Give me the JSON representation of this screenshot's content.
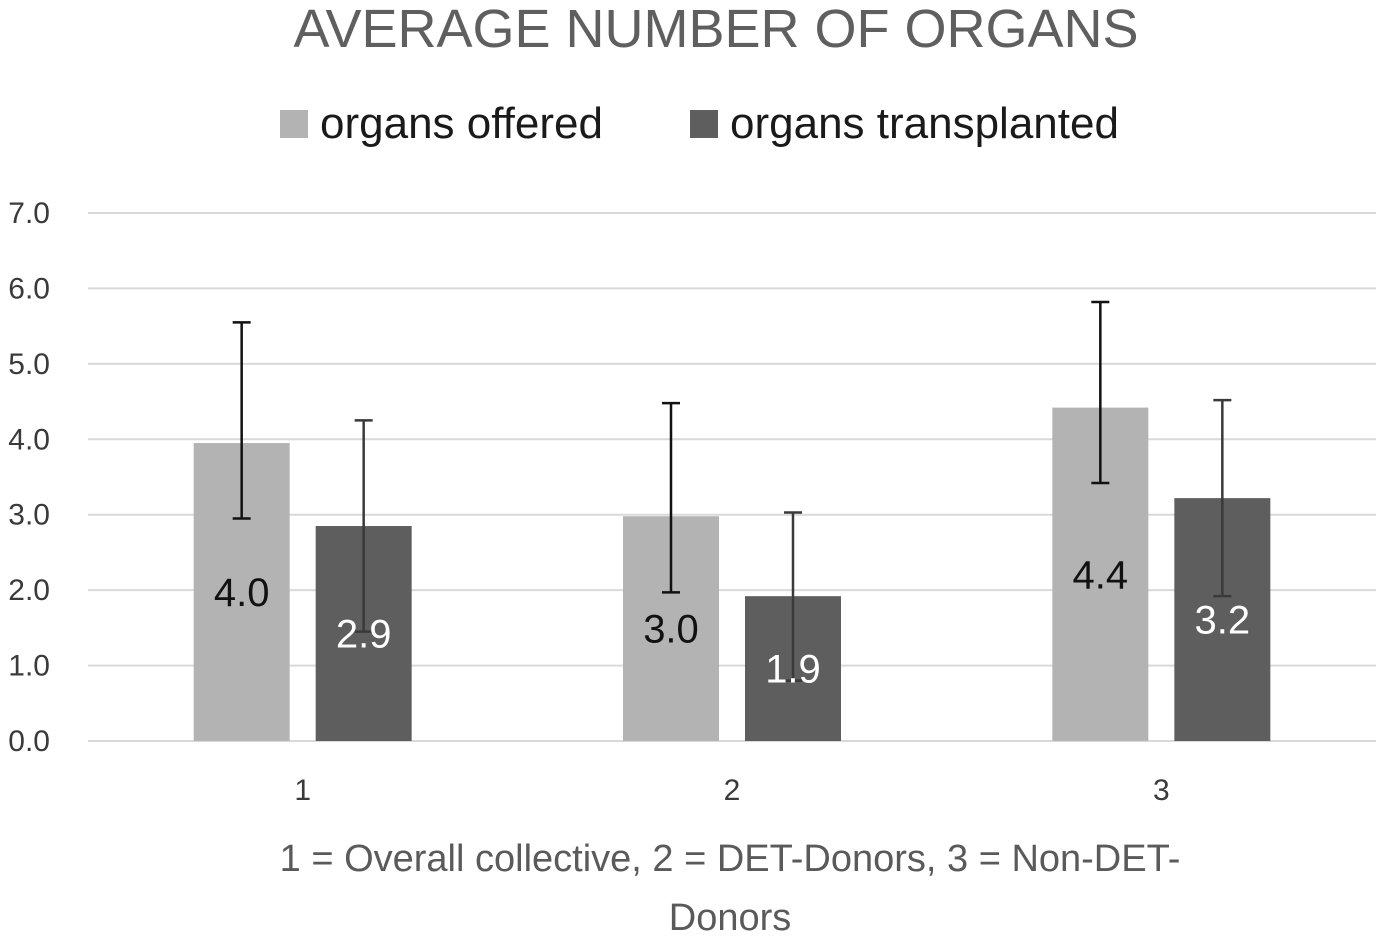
{
  "chart_data": {
    "type": "bar",
    "title": "AVERAGE NUMBER OF ORGANS",
    "xlabel": "1 = Overall collective, 2 =  DET-Donors, 3 = Non-DET-Donors",
    "xlabel_lines": [
      "1 = Overall collective, 2 =  DET-Donors, 3 = Non-DET-",
      "Donors"
    ],
    "ylabel": "",
    "categories": [
      "1",
      "2",
      "3"
    ],
    "ylim": [
      0,
      7
    ],
    "yticks": [
      "0.0",
      "1.0",
      "2.0",
      "3.0",
      "4.0",
      "5.0",
      "6.0",
      "7.0"
    ],
    "grid": true,
    "legend_position": "top",
    "series": [
      {
        "name": "organs offered",
        "color": "#b3b3b3",
        "label_color": "#111111",
        "values": [
          3.95,
          2.98,
          4.42
        ],
        "labels": [
          "4.0",
          "3.0",
          "4.4"
        ],
        "error_low": [
          2.95,
          1.97,
          3.42
        ],
        "error_high": [
          5.55,
          4.48,
          5.82
        ],
        "error_color": "#111111"
      },
      {
        "name": "organs transplanted",
        "color": "#5e5e5e",
        "label_color": "#ffffff",
        "values": [
          2.85,
          1.92,
          3.22
        ],
        "labels": [
          "2.9",
          "1.9",
          "3.2"
        ],
        "error_low": [
          1.45,
          0.8,
          1.92
        ],
        "error_high": [
          4.25,
          3.03,
          4.52
        ],
        "error_color": "#3a3a3a"
      }
    ]
  }
}
